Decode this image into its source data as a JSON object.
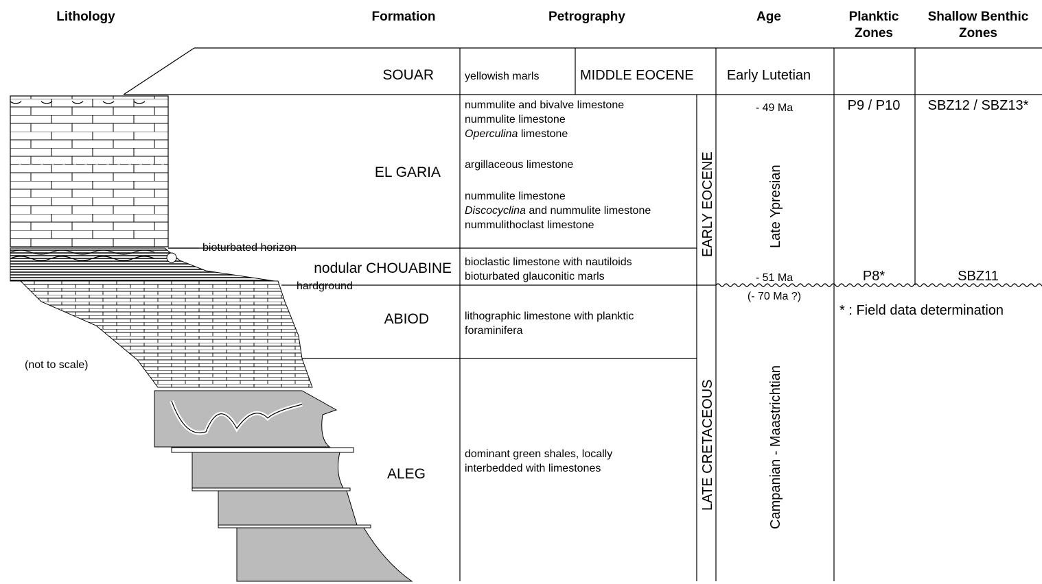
{
  "headers": {
    "lithology": "Lithology",
    "formation": "Formation",
    "petrography": "Petrography",
    "age": "Age",
    "planktic": [
      "Planktic",
      "Zones"
    ],
    "benthic": [
      "Shallow Benthic",
      "Zones"
    ]
  },
  "lithology": {
    "labels": [
      "bioturbated horizon",
      "hardground"
    ],
    "note": "(not to scale)"
  },
  "formations": [
    "SOUAR",
    "EL GARIA",
    "nodular CHOUABINE",
    "ABIOD",
    "ALEG"
  ],
  "petrography": {
    "souar": "yellowish marls",
    "middle_eocene": "MIDDLE EOCENE",
    "el_garia": [
      "nummulite and bivalve limestone",
      "nummulite limestone",
      {
        "em": "Operculina",
        "text": " limestone"
      },
      "argillaceous limestone",
      "nummulite limestone",
      {
        "em": "Discocyclina",
        "text": " and nummulite limestone"
      },
      "nummulithoclast limestone"
    ],
    "chouabine": [
      "bioclastic limestone with nautiloids",
      "bioturbated glauconitic marls"
    ],
    "abiod": [
      "lithographic limestone with planktic",
      "foraminifera"
    ],
    "aleg": [
      "dominant green shales, locally",
      "interbedded with limestones"
    ]
  },
  "epochs": [
    "EARLY EOCENE",
    "LATE CRETACEOUS"
  ],
  "age": {
    "souar": "Early Lutetian",
    "top_eocene": "- 49 Ma",
    "ypresian": "Late Ypresian",
    "base_eocene": "- 51 Ma",
    "top_cretaceous": "(- 70 Ma ?)",
    "cretaceous": "Campanian - Maastrichtian"
  },
  "planktic_zones": [
    "P9 / P10",
    "P8*"
  ],
  "benthic_zones": [
    "SBZ12 / SBZ13*",
    "SBZ11"
  ],
  "footnote": "* : Field data determination"
}
